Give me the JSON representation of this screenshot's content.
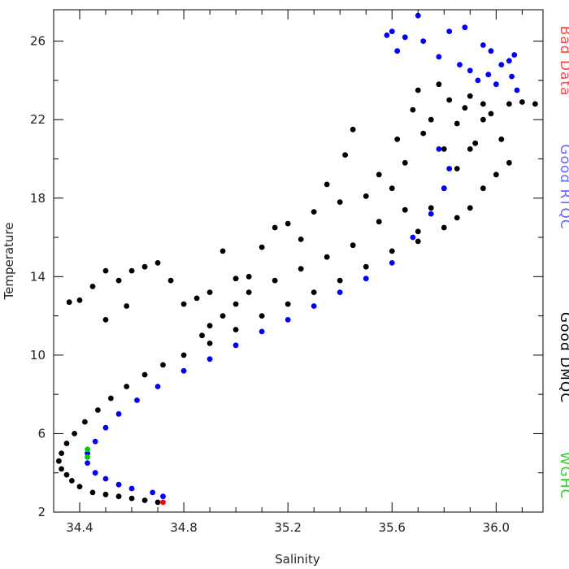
{
  "chart_data": {
    "type": "scatter",
    "title": "",
    "xlabel": "Salinity",
    "ylabel": "Temperature",
    "xlim": [
      34.3,
      36.18
    ],
    "ylim": [
      2,
      27.6
    ],
    "xticks": [
      34.4,
      34.8,
      35.2,
      35.6,
      36.0
    ],
    "xtick_labels": [
      "34.4",
      "34.8",
      "35.2",
      "35.6",
      "36.0"
    ],
    "yticks": [
      2,
      6,
      10,
      14,
      18,
      22,
      26
    ],
    "ytick_labels": [
      "2",
      "6",
      "10",
      "14",
      "18",
      "22",
      "26"
    ],
    "grid": false,
    "legend_placement": "right side, vertical text",
    "series": [
      {
        "name": "Good DMQC",
        "color": "#000000",
        "points": [
          [
            34.32,
            4.6
          ],
          [
            34.33,
            4.2
          ],
          [
            34.35,
            3.9
          ],
          [
            34.37,
            3.6
          ],
          [
            34.4,
            3.3
          ],
          [
            34.45,
            3.0
          ],
          [
            34.5,
            2.9
          ],
          [
            34.55,
            2.8
          ],
          [
            34.6,
            2.7
          ],
          [
            34.65,
            2.6
          ],
          [
            34.7,
            2.5
          ],
          [
            34.33,
            5.0
          ],
          [
            34.35,
            5.5
          ],
          [
            34.38,
            6.0
          ],
          [
            34.42,
            6.6
          ],
          [
            34.47,
            7.2
          ],
          [
            34.52,
            7.8
          ],
          [
            34.58,
            8.4
          ],
          [
            34.65,
            9.0
          ],
          [
            34.72,
            9.5
          ],
          [
            34.8,
            10.0
          ],
          [
            34.9,
            10.6
          ],
          [
            35.0,
            11.3
          ],
          [
            35.1,
            12.0
          ],
          [
            35.2,
            12.6
          ],
          [
            35.3,
            13.2
          ],
          [
            35.4,
            13.8
          ],
          [
            35.5,
            14.5
          ],
          [
            35.6,
            15.3
          ],
          [
            35.7,
            16.3
          ],
          [
            35.75,
            17.5
          ],
          [
            35.8,
            18.5
          ],
          [
            35.85,
            19.5
          ],
          [
            35.9,
            20.5
          ],
          [
            35.95,
            22.0
          ],
          [
            34.36,
            12.7
          ],
          [
            34.4,
            12.8
          ],
          [
            34.45,
            13.5
          ],
          [
            34.5,
            14.3
          ],
          [
            34.55,
            13.8
          ],
          [
            34.6,
            14.3
          ],
          [
            34.65,
            14.5
          ],
          [
            34.7,
            14.7
          ],
          [
            34.75,
            13.8
          ],
          [
            34.8,
            12.6
          ],
          [
            34.85,
            12.9
          ],
          [
            34.9,
            13.2
          ],
          [
            34.95,
            15.3
          ],
          [
            35.0,
            13.9
          ],
          [
            35.05,
            14.0
          ],
          [
            35.1,
            15.5
          ],
          [
            35.15,
            16.5
          ],
          [
            35.2,
            16.7
          ],
          [
            35.25,
            15.9
          ],
          [
            35.3,
            17.3
          ],
          [
            35.35,
            18.7
          ],
          [
            35.4,
            17.8
          ],
          [
            35.42,
            20.2
          ],
          [
            35.45,
            21.5
          ],
          [
            35.5,
            18.1
          ],
          [
            35.55,
            19.2
          ],
          [
            35.6,
            18.5
          ],
          [
            35.62,
            21.0
          ],
          [
            35.65,
            19.8
          ],
          [
            35.68,
            22.5
          ],
          [
            35.7,
            23.5
          ],
          [
            35.72,
            21.3
          ],
          [
            35.75,
            22.0
          ],
          [
            35.78,
            23.8
          ],
          [
            35.8,
            20.5
          ],
          [
            35.82,
            23.0
          ],
          [
            35.85,
            21.8
          ],
          [
            35.88,
            22.6
          ],
          [
            35.9,
            23.2
          ],
          [
            35.92,
            20.8
          ],
          [
            35.95,
            22.8
          ],
          [
            35.98,
            22.3
          ],
          [
            36.02,
            21.0
          ],
          [
            36.05,
            22.8
          ],
          [
            36.1,
            22.9
          ],
          [
            36.15,
            22.8
          ],
          [
            35.85,
            17.0
          ],
          [
            35.9,
            17.5
          ],
          [
            35.95,
            18.5
          ],
          [
            36.0,
            19.2
          ],
          [
            36.05,
            19.8
          ],
          [
            35.8,
            16.5
          ],
          [
            35.7,
            15.8
          ],
          [
            34.9,
            11.5
          ],
          [
            35.0,
            12.6
          ],
          [
            34.87,
            11.0
          ],
          [
            34.95,
            12.0
          ],
          [
            35.05,
            13.2
          ],
          [
            35.15,
            13.8
          ],
          [
            35.25,
            14.4
          ],
          [
            35.35,
            15.0
          ],
          [
            35.45,
            15.6
          ],
          [
            35.55,
            16.8
          ],
          [
            35.65,
            17.4
          ],
          [
            34.5,
            11.8
          ],
          [
            34.58,
            12.5
          ]
        ]
      },
      {
        "name": "Good RTQC",
        "color": "#0000ff",
        "points": [
          [
            34.72,
            2.8
          ],
          [
            34.68,
            3.0
          ],
          [
            34.6,
            3.2
          ],
          [
            34.55,
            3.4
          ],
          [
            34.5,
            3.7
          ],
          [
            34.46,
            4.0
          ],
          [
            34.43,
            4.5
          ],
          [
            34.43,
            5.0
          ],
          [
            34.46,
            5.6
          ],
          [
            34.5,
            6.3
          ],
          [
            34.55,
            7.0
          ],
          [
            34.62,
            7.7
          ],
          [
            34.7,
            8.4
          ],
          [
            34.8,
            9.2
          ],
          [
            34.9,
            9.8
          ],
          [
            35.0,
            10.5
          ],
          [
            35.1,
            11.2
          ],
          [
            35.2,
            11.8
          ],
          [
            35.3,
            12.5
          ],
          [
            35.4,
            13.2
          ],
          [
            35.5,
            13.9
          ],
          [
            35.6,
            14.7
          ],
          [
            35.68,
            16.0
          ],
          [
            35.75,
            17.2
          ],
          [
            35.8,
            18.5
          ],
          [
            35.82,
            19.5
          ],
          [
            35.78,
            20.5
          ],
          [
            35.6,
            26.5
          ],
          [
            35.58,
            26.3
          ],
          [
            35.62,
            25.5
          ],
          [
            35.65,
            26.2
          ],
          [
            35.7,
            27.3
          ],
          [
            35.72,
            26.0
          ],
          [
            35.78,
            25.2
          ],
          [
            35.82,
            26.5
          ],
          [
            35.88,
            26.7
          ],
          [
            35.9,
            24.5
          ],
          [
            35.95,
            25.8
          ],
          [
            35.98,
            25.5
          ],
          [
            36.02,
            24.8
          ],
          [
            36.05,
            25.0
          ],
          [
            36.07,
            25.3
          ],
          [
            36.06,
            24.2
          ],
          [
            36.08,
            23.5
          ],
          [
            36.0,
            23.8
          ],
          [
            35.97,
            24.3
          ],
          [
            35.93,
            24.0
          ],
          [
            35.86,
            24.8
          ]
        ]
      },
      {
        "name": "WGHC",
        "color": "#00cc00",
        "points": [
          [
            34.43,
            5.2
          ],
          [
            34.43,
            4.8
          ]
        ]
      },
      {
        "name": "Bad Data",
        "color": "#ff0000",
        "points": [
          [
            34.72,
            2.5
          ]
        ]
      }
    ],
    "legend": [
      {
        "name": "Bad Data",
        "color": "#ff4444"
      },
      {
        "name": "Good RTQC",
        "color": "#6666ff"
      },
      {
        "name": "Good DMQC",
        "color": "#000000"
      },
      {
        "name": "WGHC",
        "color": "#33cc33"
      }
    ]
  }
}
